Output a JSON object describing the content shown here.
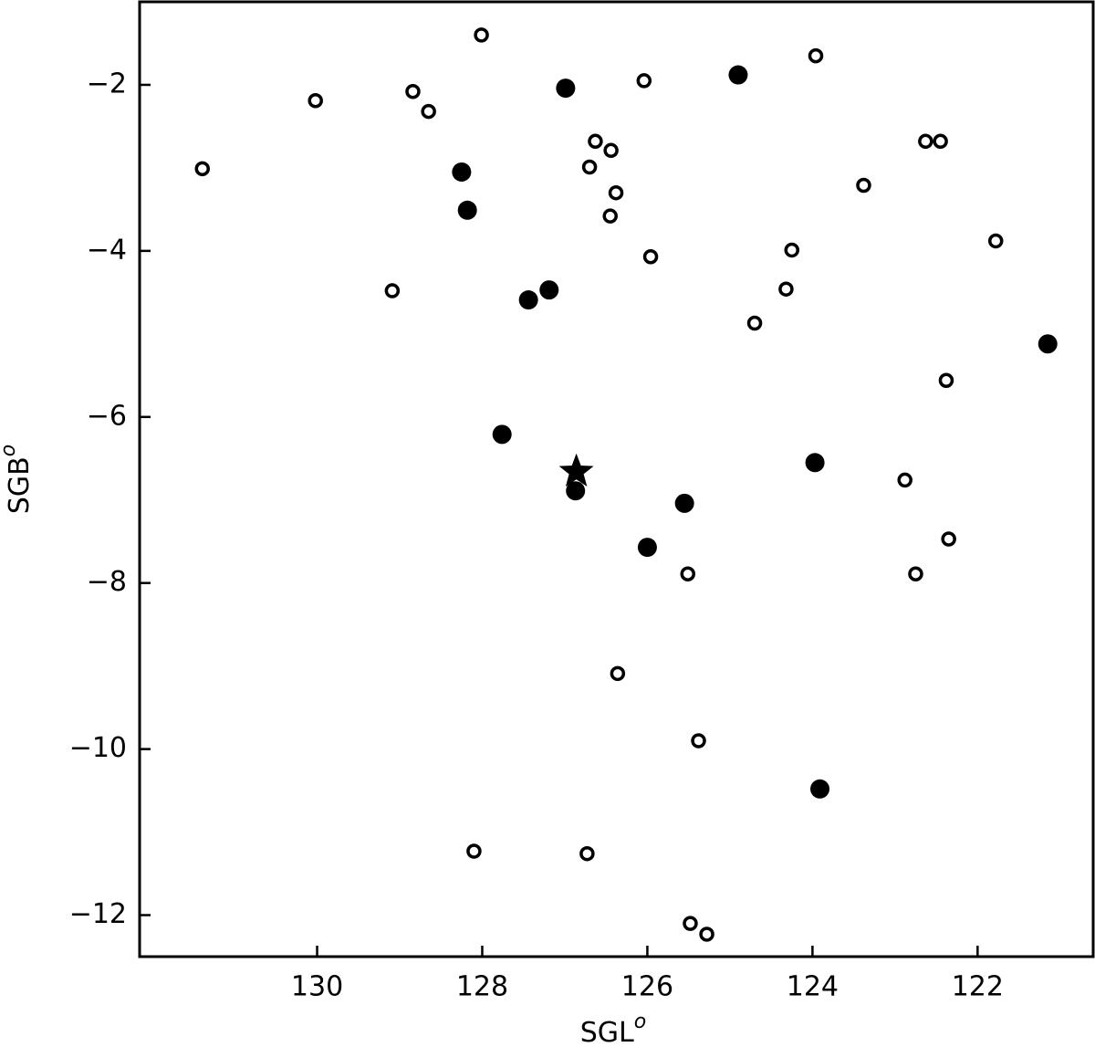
{
  "chart_data": {
    "type": "scatter",
    "xlabel": {
      "text": "SGL",
      "sup": "o"
    },
    "ylabel": {
      "text": "SGB",
      "sup": "o"
    },
    "xlim": [
      132.15,
      120.6
    ],
    "ylim": [
      -12.5,
      -1.0
    ],
    "xticks": [
      130,
      128,
      126,
      124,
      122
    ],
    "yticks": [
      {
        "value": -2,
        "label": "−2"
      },
      {
        "value": -4,
        "label": "−4"
      },
      {
        "value": -6,
        "label": "−6"
      },
      {
        "value": -8,
        "label": "−8"
      },
      {
        "value": -10,
        "label": "−10"
      },
      {
        "value": -12,
        "label": "−12"
      }
    ],
    "series": [
      {
        "marker": "filled-circle",
        "color": "#000000",
        "x": [
          126.99,
          124.9,
          128.25,
          128.18,
          127.44,
          127.19,
          121.15,
          127.76,
          123.97,
          126.87,
          125.55,
          126.0,
          123.91
        ],
        "y": [
          -2.04,
          -1.88,
          -3.05,
          -3.51,
          -4.59,
          -4.47,
          -5.12,
          -6.21,
          -6.55,
          -6.89,
          -7.04,
          -7.57,
          -10.48
        ]
      },
      {
        "marker": "open-circle",
        "color": "#000000",
        "x": [
          128.01,
          130.02,
          128.84,
          128.65,
          131.39,
          126.04,
          123.96,
          126.63,
          126.44,
          126.7,
          126.38,
          126.45,
          125.96,
          129.09,
          124.25,
          124.32,
          124.7,
          123.38,
          122.63,
          122.45,
          121.78,
          122.38,
          122.88,
          122.35,
          122.75,
          125.51,
          126.36,
          125.38,
          128.1,
          126.73,
          125.48,
          125.28
        ],
        "y": [
          -1.4,
          -2.19,
          -2.08,
          -2.32,
          -3.01,
          -1.95,
          -1.65,
          -2.68,
          -2.79,
          -2.99,
          -3.3,
          -3.58,
          -4.07,
          -4.48,
          -3.99,
          -4.46,
          -4.87,
          -3.21,
          -2.68,
          -2.68,
          -3.88,
          -5.56,
          -6.76,
          -7.47,
          -7.89,
          -7.89,
          -9.09,
          -9.9,
          -11.23,
          -11.26,
          -12.1,
          -12.23
        ]
      },
      {
        "marker": "star",
        "color": "#000000",
        "x": [
          126.86
        ],
        "y": [
          -6.66
        ]
      }
    ]
  }
}
